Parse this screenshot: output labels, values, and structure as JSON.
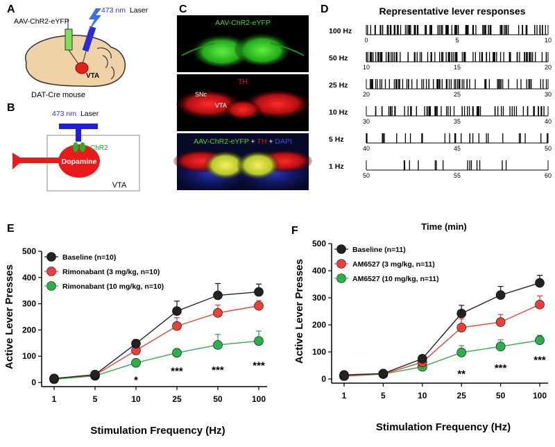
{
  "panels": {
    "A": {
      "letter": "A",
      "virus": "AAV-ChR2-eYFP",
      "laser_nm": "473 nm",
      "laser_word": "Laser",
      "region": "VTA",
      "mouse": "DAT-Cre mouse"
    },
    "B": {
      "letter": "B",
      "laser_nm": "473 nm",
      "laser_word": "Laser",
      "channel": "ChR2",
      "cell": "Dopamine",
      "region": "VTA"
    },
    "C": {
      "letter": "C",
      "top_label": "AAV-ChR2-eYFP",
      "mid_label": "TH",
      "snc": "SNc",
      "vta": "VTA",
      "merge_a": "AAV-ChR2-eYFP",
      "merge_plus1": " + ",
      "merge_b": "TH",
      "merge_plus2": " + ",
      "merge_c": "DAPI",
      "colors": {
        "green": "#3fdc2a",
        "red": "#e0141a",
        "blue": "#1f2fd6",
        "yellow": "#e8e83a"
      }
    },
    "D": {
      "letter": "D",
      "title": "Representative lever responses",
      "xlabel": "Time (min)",
      "rows": [
        {
          "label": "100 Hz",
          "ticks": [
            "0",
            "5",
            "10"
          ]
        },
        {
          "label": "50 Hz",
          "ticks": [
            "10",
            "15",
            "20"
          ]
        },
        {
          "label": "25 Hz",
          "ticks": [
            "20",
            "25",
            "30"
          ]
        },
        {
          "label": "10 Hz",
          "ticks": [
            "30",
            "35",
            "40"
          ]
        },
        {
          "label": "5 Hz",
          "ticks": [
            "40",
            "45",
            "50"
          ]
        },
        {
          "label": "1 Hz",
          "ticks": [
            "50",
            "55",
            "60"
          ]
        }
      ]
    },
    "E": {
      "letter": "E"
    },
    "F": {
      "letter": "F"
    }
  },
  "chart_data": [
    {
      "panel": "E",
      "type": "line",
      "categories": [
        "1",
        "5",
        "10",
        "25",
        "50",
        "100"
      ],
      "xlabel": "Stimulation Frequency (Hz)",
      "ylabel": "Active Lever Presses",
      "ylim": [
        0,
        500
      ],
      "yticks": [
        "0",
        "100",
        "200",
        "300",
        "400",
        "500"
      ],
      "legend_position": "top-left",
      "series": [
        {
          "name": "Baseline (n=10)",
          "color": "#222222",
          "values": [
            15,
            30,
            148,
            272,
            332,
            345
          ],
          "err": [
            5,
            6,
            15,
            38,
            45,
            30
          ]
        },
        {
          "name": "Rimonabant (3 mg/kg, n=10)",
          "color": "#e8403a",
          "values": [
            15,
            28,
            122,
            215,
            265,
            292
          ],
          "err": [
            4,
            5,
            14,
            32,
            30,
            20
          ]
        },
        {
          "name": "Rimonabant (10 mg/kg, n=10)",
          "color": "#2db04a",
          "values": [
            12,
            25,
            75,
            113,
            143,
            158
          ],
          "err": [
            4,
            4,
            10,
            14,
            40,
            38
          ]
        }
      ],
      "annotations": [
        {
          "category": "10",
          "text": "*"
        },
        {
          "category": "25",
          "text": "***"
        },
        {
          "category": "50",
          "text": "***"
        },
        {
          "category": "100",
          "text": "***"
        }
      ]
    },
    {
      "panel": "F",
      "type": "line",
      "categories": [
        "1",
        "5",
        "10",
        "25",
        "50",
        "100"
      ],
      "xlabel": "Stimulation Frequency (Hz)",
      "ylabel": "Active Lever Presses",
      "ylim": [
        0,
        500
      ],
      "yticks": [
        "0",
        "100",
        "200",
        "300",
        "400",
        "500"
      ],
      "legend_position": "top-left",
      "series": [
        {
          "name": "Baseline (n=11)",
          "color": "#222222",
          "values": [
            15,
            20,
            75,
            242,
            310,
            355
          ],
          "err": [
            5,
            5,
            10,
            30,
            32,
            28
          ]
        },
        {
          "name": "AM6527 (3 mg/kg, n=11)",
          "color": "#e8403a",
          "values": [
            12,
            18,
            62,
            190,
            210,
            275
          ],
          "err": [
            4,
            5,
            8,
            32,
            28,
            32
          ]
        },
        {
          "name": "AM6527 (10 mg/kg, n=11)",
          "color": "#2db04a",
          "values": [
            10,
            18,
            45,
            98,
            120,
            143
          ],
          "err": [
            4,
            5,
            6,
            25,
            25,
            18
          ]
        }
      ],
      "annotations": [
        {
          "category": "25",
          "text": "**"
        },
        {
          "category": "50",
          "text": "***"
        },
        {
          "category": "100",
          "text": "***"
        }
      ]
    }
  ]
}
